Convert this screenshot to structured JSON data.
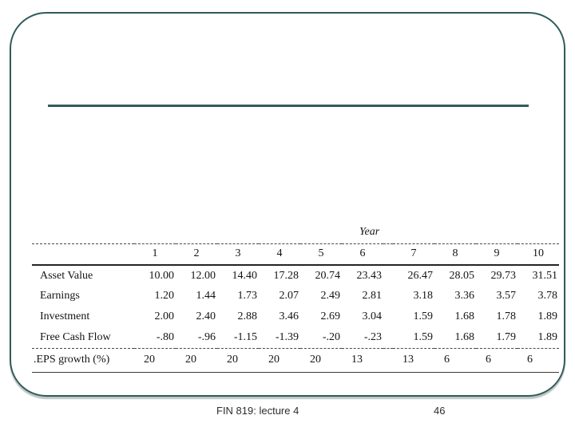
{
  "slide": {
    "accent_color": "#305b59",
    "background_color": "#ffffff"
  },
  "chart_data": {
    "type": "table",
    "group_header": "Year",
    "columns": [
      "1",
      "2",
      "3",
      "4",
      "5",
      "6",
      "7",
      "8",
      "9",
      "10"
    ],
    "rows": [
      {
        "label": "Asset Value",
        "values": [
          "10.00",
          "12.00",
          "14.40",
          "17.28",
          "20.74",
          "23.43",
          "26.47",
          "28.05",
          "29.73",
          "31.51"
        ]
      },
      {
        "label": "Earnings",
        "values": [
          "1.20",
          "1.44",
          "1.73",
          "2.07",
          "2.49",
          "2.81",
          "3.18",
          "3.36",
          "3.57",
          "3.78"
        ]
      },
      {
        "label": "Investment",
        "values": [
          "2.00",
          "2.40",
          "2.88",
          "3.46",
          "2.69",
          "3.04",
          "1.59",
          "1.68",
          "1.78",
          "1.89"
        ]
      },
      {
        "label": "Free Cash Flow",
        "values": [
          "-.80",
          "-.96",
          "-1.15",
          "-1.39",
          "-.20",
          "-.23",
          "1.59",
          "1.68",
          "1.79",
          "1.89"
        ]
      },
      {
        "label": ".EPS growth (%)",
        "values": [
          "20",
          "20",
          "20",
          "20",
          "20",
          "13",
          "13",
          "6",
          "6",
          "6"
        ]
      }
    ]
  },
  "footer": {
    "lecture": "FIN 819: lecture 4",
    "page_number": "46"
  }
}
